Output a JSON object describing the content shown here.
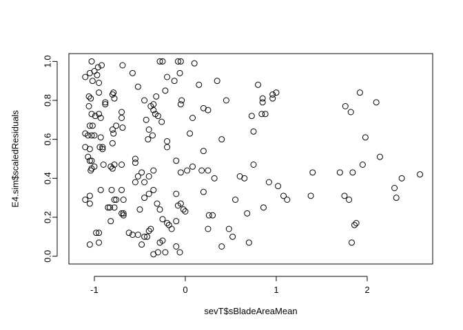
{
  "chart_data": {
    "type": "scatter",
    "title": "",
    "xlabel": "sevT$sBladeAreaMean",
    "ylabel": "E4.sim$scaledResiduals",
    "xlim": [
      -1.28,
      2.72
    ],
    "ylim": [
      -0.04,
      1.04
    ],
    "x_ticks": [
      -1,
      0,
      1,
      2
    ],
    "x_tick_labels": [
      "-1",
      "0",
      "1",
      "2"
    ],
    "y_ticks": [
      0.0,
      0.2,
      0.4,
      0.6,
      0.8,
      1.0
    ],
    "y_tick_labels": [
      "0.0",
      "0.2",
      "0.4",
      "0.6",
      "0.8",
      "1.0"
    ],
    "grid": false,
    "legend": "none",
    "marker": "open-circle",
    "points": [
      [
        -1.1,
        0.92
      ],
      [
        -1.05,
        0.94
      ],
      [
        -1.03,
        1.0
      ],
      [
        -1.02,
        0.9
      ],
      [
        -1.0,
        0.95
      ],
      [
        -0.97,
        0.93
      ],
      [
        -0.96,
        0.97
      ],
      [
        -0.92,
        0.98
      ],
      [
        -0.95,
        0.89
      ],
      [
        -1.06,
        0.82
      ],
      [
        -1.04,
        0.81
      ],
      [
        -0.95,
        0.84
      ],
      [
        -0.88,
        0.78
      ],
      [
        -0.88,
        0.79
      ],
      [
        -0.8,
        0.83
      ],
      [
        -0.79,
        0.84
      ],
      [
        -0.78,
        0.81
      ],
      [
        -1.06,
        0.77
      ],
      [
        -1.03,
        0.73
      ],
      [
        -0.99,
        0.72
      ],
      [
        -0.95,
        0.73
      ],
      [
        -0.93,
        0.71
      ],
      [
        -1.05,
        0.67
      ],
      [
        -1.02,
        0.67
      ],
      [
        -0.8,
        0.65
      ],
      [
        -0.79,
        0.63
      ],
      [
        -0.76,
        0.67
      ],
      [
        -1.1,
        0.63
      ],
      [
        -1.07,
        0.62
      ],
      [
        -1.03,
        0.62
      ],
      [
        -1.0,
        0.62
      ],
      [
        -0.93,
        0.61
      ],
      [
        -1.1,
        0.56
      ],
      [
        -1.05,
        0.55
      ],
      [
        -0.94,
        0.56
      ],
      [
        -0.91,
        0.56
      ],
      [
        -0.91,
        0.55
      ],
      [
        -0.8,
        0.58
      ],
      [
        -1.07,
        0.51
      ],
      [
        -1.05,
        0.49
      ],
      [
        -1.03,
        0.49
      ],
      [
        -1.0,
        0.46
      ],
      [
        -0.9,
        0.47
      ],
      [
        -0.82,
        0.46
      ],
      [
        -0.8,
        0.45
      ],
      [
        -0.78,
        0.47
      ],
      [
        -0.7,
        0.47
      ],
      [
        -1.04,
        0.44
      ],
      [
        -1.03,
        0.45
      ],
      [
        -1.1,
        0.29
      ],
      [
        -1.05,
        0.31
      ],
      [
        -1.05,
        0.27
      ],
      [
        -0.93,
        0.34
      ],
      [
        -0.81,
        0.34
      ],
      [
        -0.78,
        0.29
      ],
      [
        -0.76,
        0.29
      ],
      [
        -0.7,
        0.34
      ],
      [
        -0.68,
        0.29
      ],
      [
        -0.85,
        0.25
      ],
      [
        -0.83,
        0.25
      ],
      [
        -0.78,
        0.25
      ],
      [
        -0.7,
        0.22
      ],
      [
        -0.68,
        0.22
      ],
      [
        -0.68,
        0.21
      ],
      [
        -0.82,
        0.18
      ],
      [
        -1.05,
        0.06
      ],
      [
        -0.98,
        0.12
      ],
      [
        -0.95,
        0.12
      ],
      [
        -0.95,
        0.07
      ],
      [
        -0.69,
        0.98
      ],
      [
        -0.58,
        0.94
      ],
      [
        -0.52,
        0.87
      ],
      [
        -0.45,
        0.8
      ],
      [
        -0.43,
        0.7
      ],
      [
        -0.4,
        0.65
      ],
      [
        -0.38,
        0.77
      ],
      [
        -0.35,
        0.78
      ],
      [
        -0.35,
        0.75
      ],
      [
        -0.33,
        0.73
      ],
      [
        -0.3,
        0.72
      ],
      [
        -0.41,
        0.6
      ],
      [
        -0.26,
        0.69
      ],
      [
        -0.28,
        1.0
      ],
      [
        -0.25,
        1.0
      ],
      [
        -0.2,
        0.92
      ],
      [
        -0.22,
        0.85
      ],
      [
        -0.2,
        0.59
      ],
      [
        -0.2,
        0.56
      ],
      [
        -0.12,
        0.9
      ],
      [
        -0.08,
        1.0
      ],
      [
        -0.05,
        1.0
      ],
      [
        -0.06,
        0.94
      ],
      [
        -0.04,
        0.8
      ],
      [
        -0.05,
        0.78
      ],
      [
        -0.7,
        0.74
      ],
      [
        -0.7,
        0.71
      ],
      [
        -0.69,
        0.66
      ],
      [
        -0.55,
        0.5
      ],
      [
        -0.48,
        0.43
      ],
      [
        -0.52,
        0.41
      ],
      [
        -0.55,
        0.38
      ],
      [
        -0.45,
        0.38
      ],
      [
        -0.4,
        0.41
      ],
      [
        -0.35,
        0.44
      ],
      [
        -0.4,
        0.32
      ],
      [
        -0.35,
        0.34
      ],
      [
        -0.45,
        0.3
      ],
      [
        -0.5,
        0.24
      ],
      [
        -0.31,
        0.27
      ],
      [
        -0.28,
        0.24
      ],
      [
        -0.25,
        0.19
      ],
      [
        -0.2,
        0.17
      ],
      [
        -0.18,
        0.16
      ],
      [
        -0.15,
        0.14
      ],
      [
        -0.1,
        0.18
      ],
      [
        -0.1,
        0.32
      ],
      [
        -0.08,
        0.26
      ],
      [
        -0.05,
        0.27
      ],
      [
        -0.1,
        0.49
      ],
      [
        -0.05,
        0.43
      ],
      [
        0.02,
        0.44
      ],
      [
        0.05,
        0.63
      ],
      [
        0.08,
        0.71
      ],
      [
        0.1,
        0.99
      ],
      [
        0.15,
        0.88
      ],
      [
        0.2,
        0.76
      ],
      [
        0.25,
        0.75
      ],
      [
        0.2,
        0.54
      ],
      [
        0.08,
        0.46
      ],
      [
        0.18,
        0.44
      ],
      [
        0.2,
        0.33
      ],
      [
        0.25,
        0.14
      ],
      [
        0.26,
        0.21
      ],
      [
        0.3,
        0.21
      ],
      [
        0.32,
        0.4
      ],
      [
        0.25,
        0.44
      ],
      [
        0.35,
        0.9
      ],
      [
        0.4,
        0.6
      ],
      [
        0.45,
        0.8
      ],
      [
        0.48,
        0.14
      ],
      [
        0.52,
        0.1
      ],
      [
        0.55,
        0.29
      ],
      [
        0.6,
        0.41
      ],
      [
        0.65,
        0.4
      ],
      [
        0.7,
        0.07
      ],
      [
        0.68,
        0.22
      ],
      [
        0.73,
        0.72
      ],
      [
        0.75,
        0.64
      ],
      [
        0.75,
        0.47
      ],
      [
        0.8,
        0.88
      ],
      [
        0.84,
        0.73
      ],
      [
        0.85,
        0.81
      ],
      [
        0.85,
        0.79
      ],
      [
        0.88,
        0.73
      ],
      [
        0.86,
        0.25
      ],
      [
        0.92,
        0.38
      ],
      [
        0.96,
        0.83
      ],
      [
        0.96,
        0.81
      ],
      [
        1.0,
        0.84
      ],
      [
        1.02,
        0.36
      ],
      [
        1.08,
        0.31
      ],
      [
        1.12,
        0.29
      ],
      [
        1.38,
        0.31
      ],
      [
        1.4,
        0.43
      ],
      [
        1.7,
        0.43
      ],
      [
        1.75,
        0.31
      ],
      [
        1.76,
        0.77
      ],
      [
        1.8,
        0.29
      ],
      [
        1.82,
        0.74
      ],
      [
        1.83,
        0.07
      ],
      [
        1.84,
        0.43
      ],
      [
        1.86,
        0.16
      ],
      [
        1.88,
        0.17
      ],
      [
        1.92,
        0.84
      ],
      [
        1.95,
        0.47
      ],
      [
        1.98,
        0.61
      ],
      [
        2.1,
        0.79
      ],
      [
        2.14,
        0.51
      ],
      [
        2.3,
        0.35
      ],
      [
        2.32,
        0.3
      ],
      [
        2.38,
        0.4
      ],
      [
        2.58,
        0.42
      ],
      [
        -0.62,
        0.12
      ],
      [
        -0.58,
        0.11
      ],
      [
        -0.52,
        0.11
      ],
      [
        -0.48,
        0.06
      ],
      [
        -0.45,
        0.1
      ],
      [
        -0.4,
        0.13
      ],
      [
        -0.38,
        0.14
      ],
      [
        -0.35,
        0.01
      ],
      [
        -0.3,
        0.02
      ],
      [
        -0.28,
        0.07
      ],
      [
        -0.25,
        0.08
      ],
      [
        -0.1,
        0.05
      ],
      [
        -0.06,
        0.02
      ],
      [
        -0.02,
        0.24
      ],
      [
        0.0,
        0.23
      ],
      [
        0.4,
        0.05
      ],
      [
        -0.22,
        0.02
      ],
      [
        -0.42,
        0.1
      ],
      [
        -0.55,
        0.48
      ],
      [
        -0.32,
        0.82
      ],
      [
        -0.36,
        0.62
      ]
    ]
  }
}
